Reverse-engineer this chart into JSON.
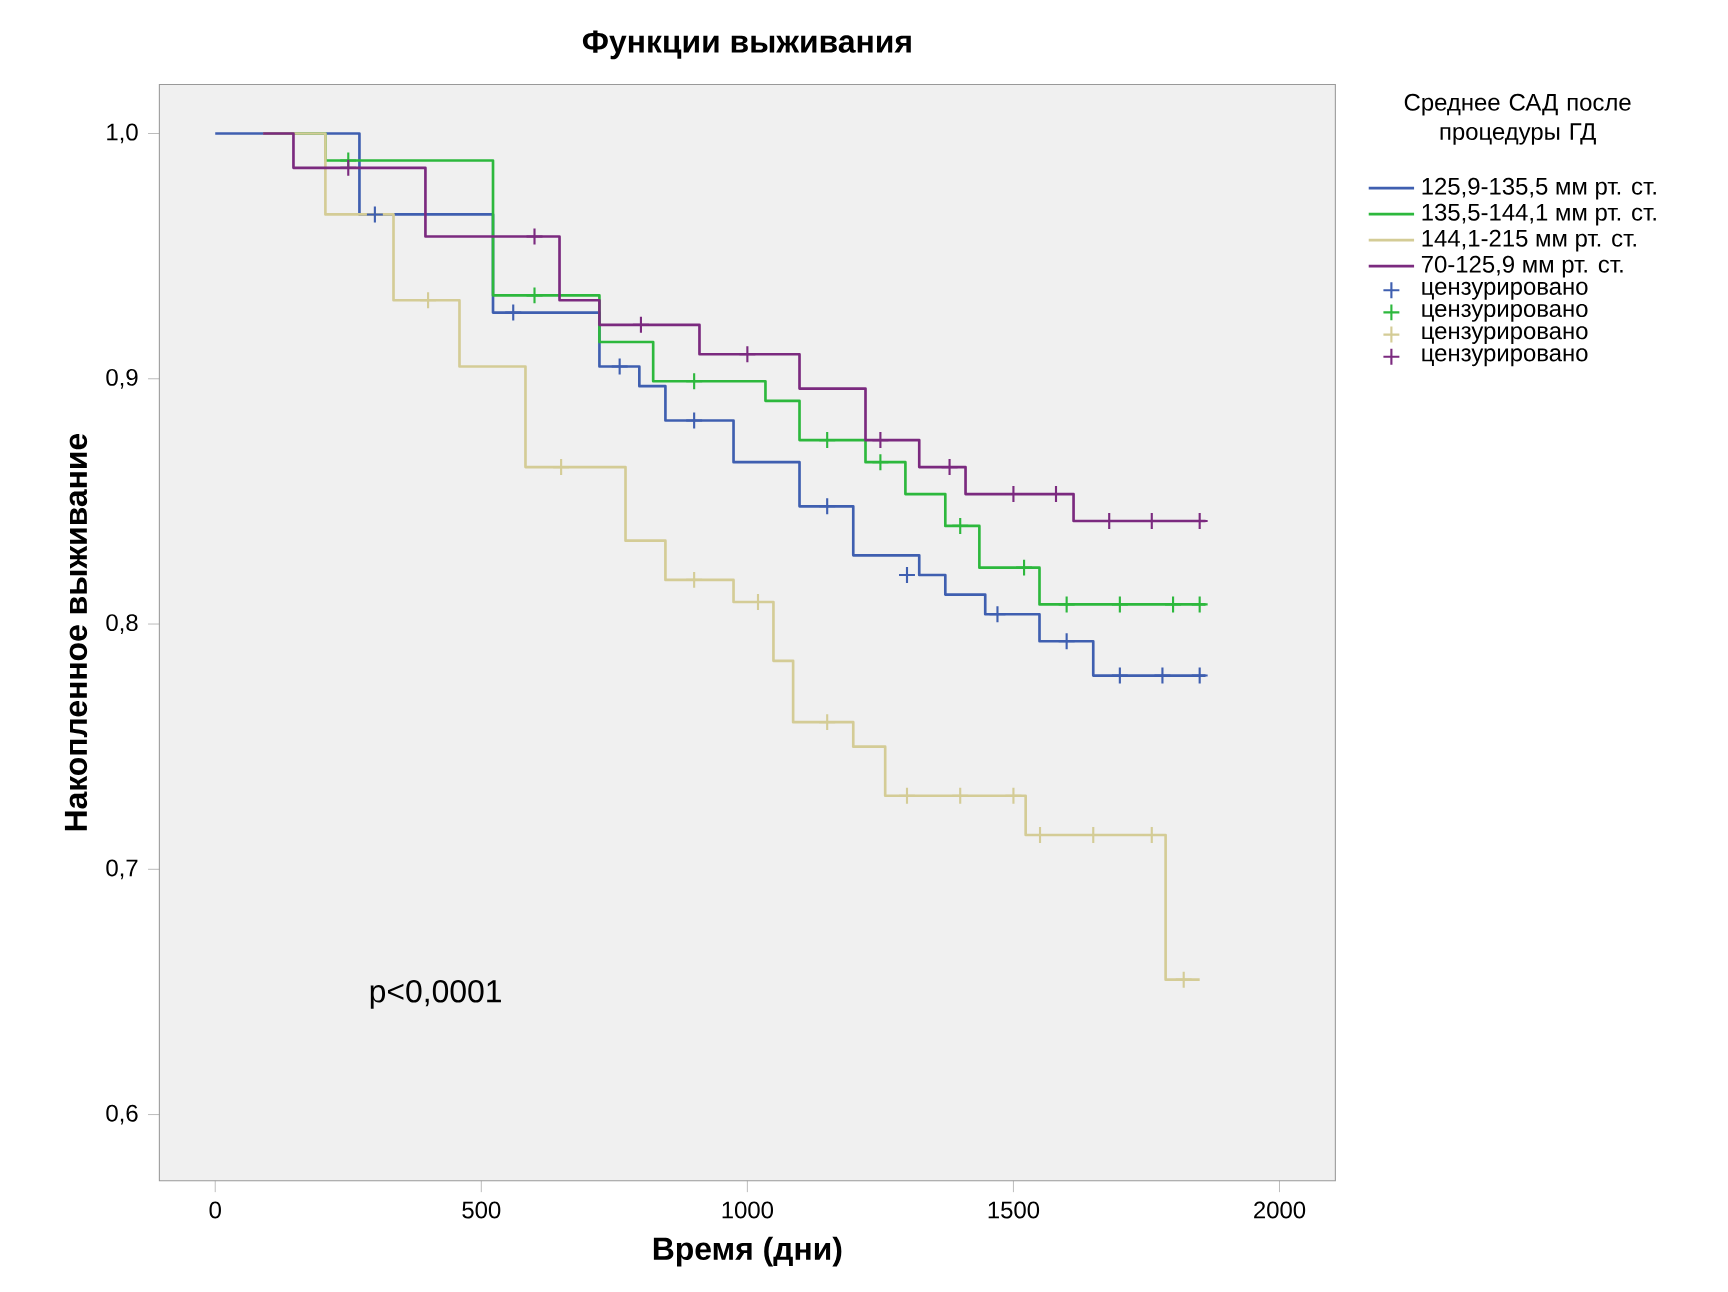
{
  "chart_data": {
    "type": "step",
    "title": "Функции выживания",
    "xlabel": "Время (дни)",
    "ylabel": "Накопленное выживание",
    "legend_title": "Среднее САД после процедуры ГД",
    "legend": "top right",
    "annotations": [
      "p<0,0001"
    ],
    "xlim": [
      -105,
      2105
    ],
    "ylim": [
      0.573,
      1.02
    ],
    "xticks": [
      0,
      500,
      1000,
      1500,
      2000
    ],
    "yticks": [
      {
        "value": 0.6,
        "label": "0,6"
      },
      {
        "value": 0.7,
        "label": "0,7"
      },
      {
        "value": 0.8,
        "label": "0,8"
      },
      {
        "value": 0.9,
        "label": "0,9"
      },
      {
        "value": 1.0,
        "label": "1,0"
      }
    ],
    "series": [
      {
        "name": "125,9-135,5 мм рт. ст.",
        "color": "#3f5fb0",
        "x": [
          0,
          90,
          271,
          522,
          722,
          797,
          846,
          974,
          1098,
          1199,
          1323,
          1372,
          1447,
          1549,
          1650,
          1861
        ],
        "values": [
          1.0,
          1.0,
          0.967,
          0.927,
          0.905,
          0.897,
          0.883,
          0.866,
          0.848,
          0.828,
          0.82,
          0.812,
          0.804,
          0.793,
          0.779,
          0.779
        ]
      },
      {
        "name": "135,5-144,1 мм рт. ст.",
        "color": "#2db83d",
        "x": [
          90,
          207,
          522,
          722,
          823,
          1034,
          1098,
          1222,
          1297,
          1372,
          1436,
          1549,
          1861
        ],
        "values": [
          1.0,
          0.989,
          0.934,
          0.915,
          0.899,
          0.891,
          0.875,
          0.866,
          0.853,
          0.84,
          0.823,
          0.808,
          0.808
        ]
      },
      {
        "name": "144,1-215 мм рт. ст.",
        "color": "#d4cc96",
        "x": [
          90,
          207,
          335,
          459,
          583,
          771,
          846,
          974,
          1049,
          1086,
          1199,
          1259,
          1523,
          1786,
          1850
        ],
        "values": [
          1.0,
          0.967,
          0.932,
          0.905,
          0.864,
          0.834,
          0.818,
          0.809,
          0.785,
          0.76,
          0.75,
          0.73,
          0.714,
          0.655,
          0.655
        ]
      },
      {
        "name": "70-125,9 мм рт. ст.",
        "color": "#7b2a7f",
        "x": [
          90,
          147,
          395,
          647,
          722,
          910,
          1098,
          1222,
          1323,
          1410,
          1613,
          1861
        ],
        "values": [
          1.0,
          0.986,
          0.958,
          0.932,
          0.922,
          0.91,
          0.896,
          0.875,
          0.864,
          0.853,
          0.842,
          0.842
        ]
      },
      {
        "name": "цензурировано",
        "type": "scatter",
        "marker": "cross",
        "color": "#3f5fb0",
        "x": [
          300,
          560,
          760,
          900,
          1150,
          1300,
          1470,
          1600,
          1700,
          1780,
          1850
        ],
        "values": [
          0.967,
          0.927,
          0.905,
          0.883,
          0.848,
          0.82,
          0.804,
          0.793,
          0.779,
          0.779,
          0.779
        ]
      },
      {
        "name": "цензурировано",
        "type": "scatter",
        "marker": "cross",
        "color": "#2db83d",
        "x": [
          250,
          600,
          900,
          1150,
          1250,
          1400,
          1520,
          1600,
          1700,
          1800,
          1850
        ],
        "values": [
          0.989,
          0.934,
          0.899,
          0.875,
          0.866,
          0.84,
          0.823,
          0.808,
          0.808,
          0.808,
          0.808
        ]
      },
      {
        "name": "цензурировано",
        "type": "scatter",
        "marker": "cross",
        "color": "#d4cc96",
        "x": [
          400,
          650,
          900,
          1020,
          1150,
          1300,
          1400,
          1500,
          1550,
          1650,
          1760,
          1820
        ],
        "values": [
          0.932,
          0.864,
          0.818,
          0.809,
          0.76,
          0.73,
          0.73,
          0.73,
          0.714,
          0.714,
          0.714,
          0.655
        ]
      },
      {
        "name": "цензурировано",
        "type": "scatter",
        "marker": "cross",
        "color": "#7b2a7f",
        "x": [
          250,
          600,
          800,
          1000,
          1250,
          1380,
          1500,
          1580,
          1680,
          1760,
          1850
        ],
        "values": [
          0.986,
          0.958,
          0.922,
          0.91,
          0.875,
          0.864,
          0.853,
          0.853,
          0.842,
          0.842,
          0.842
        ]
      }
    ]
  }
}
